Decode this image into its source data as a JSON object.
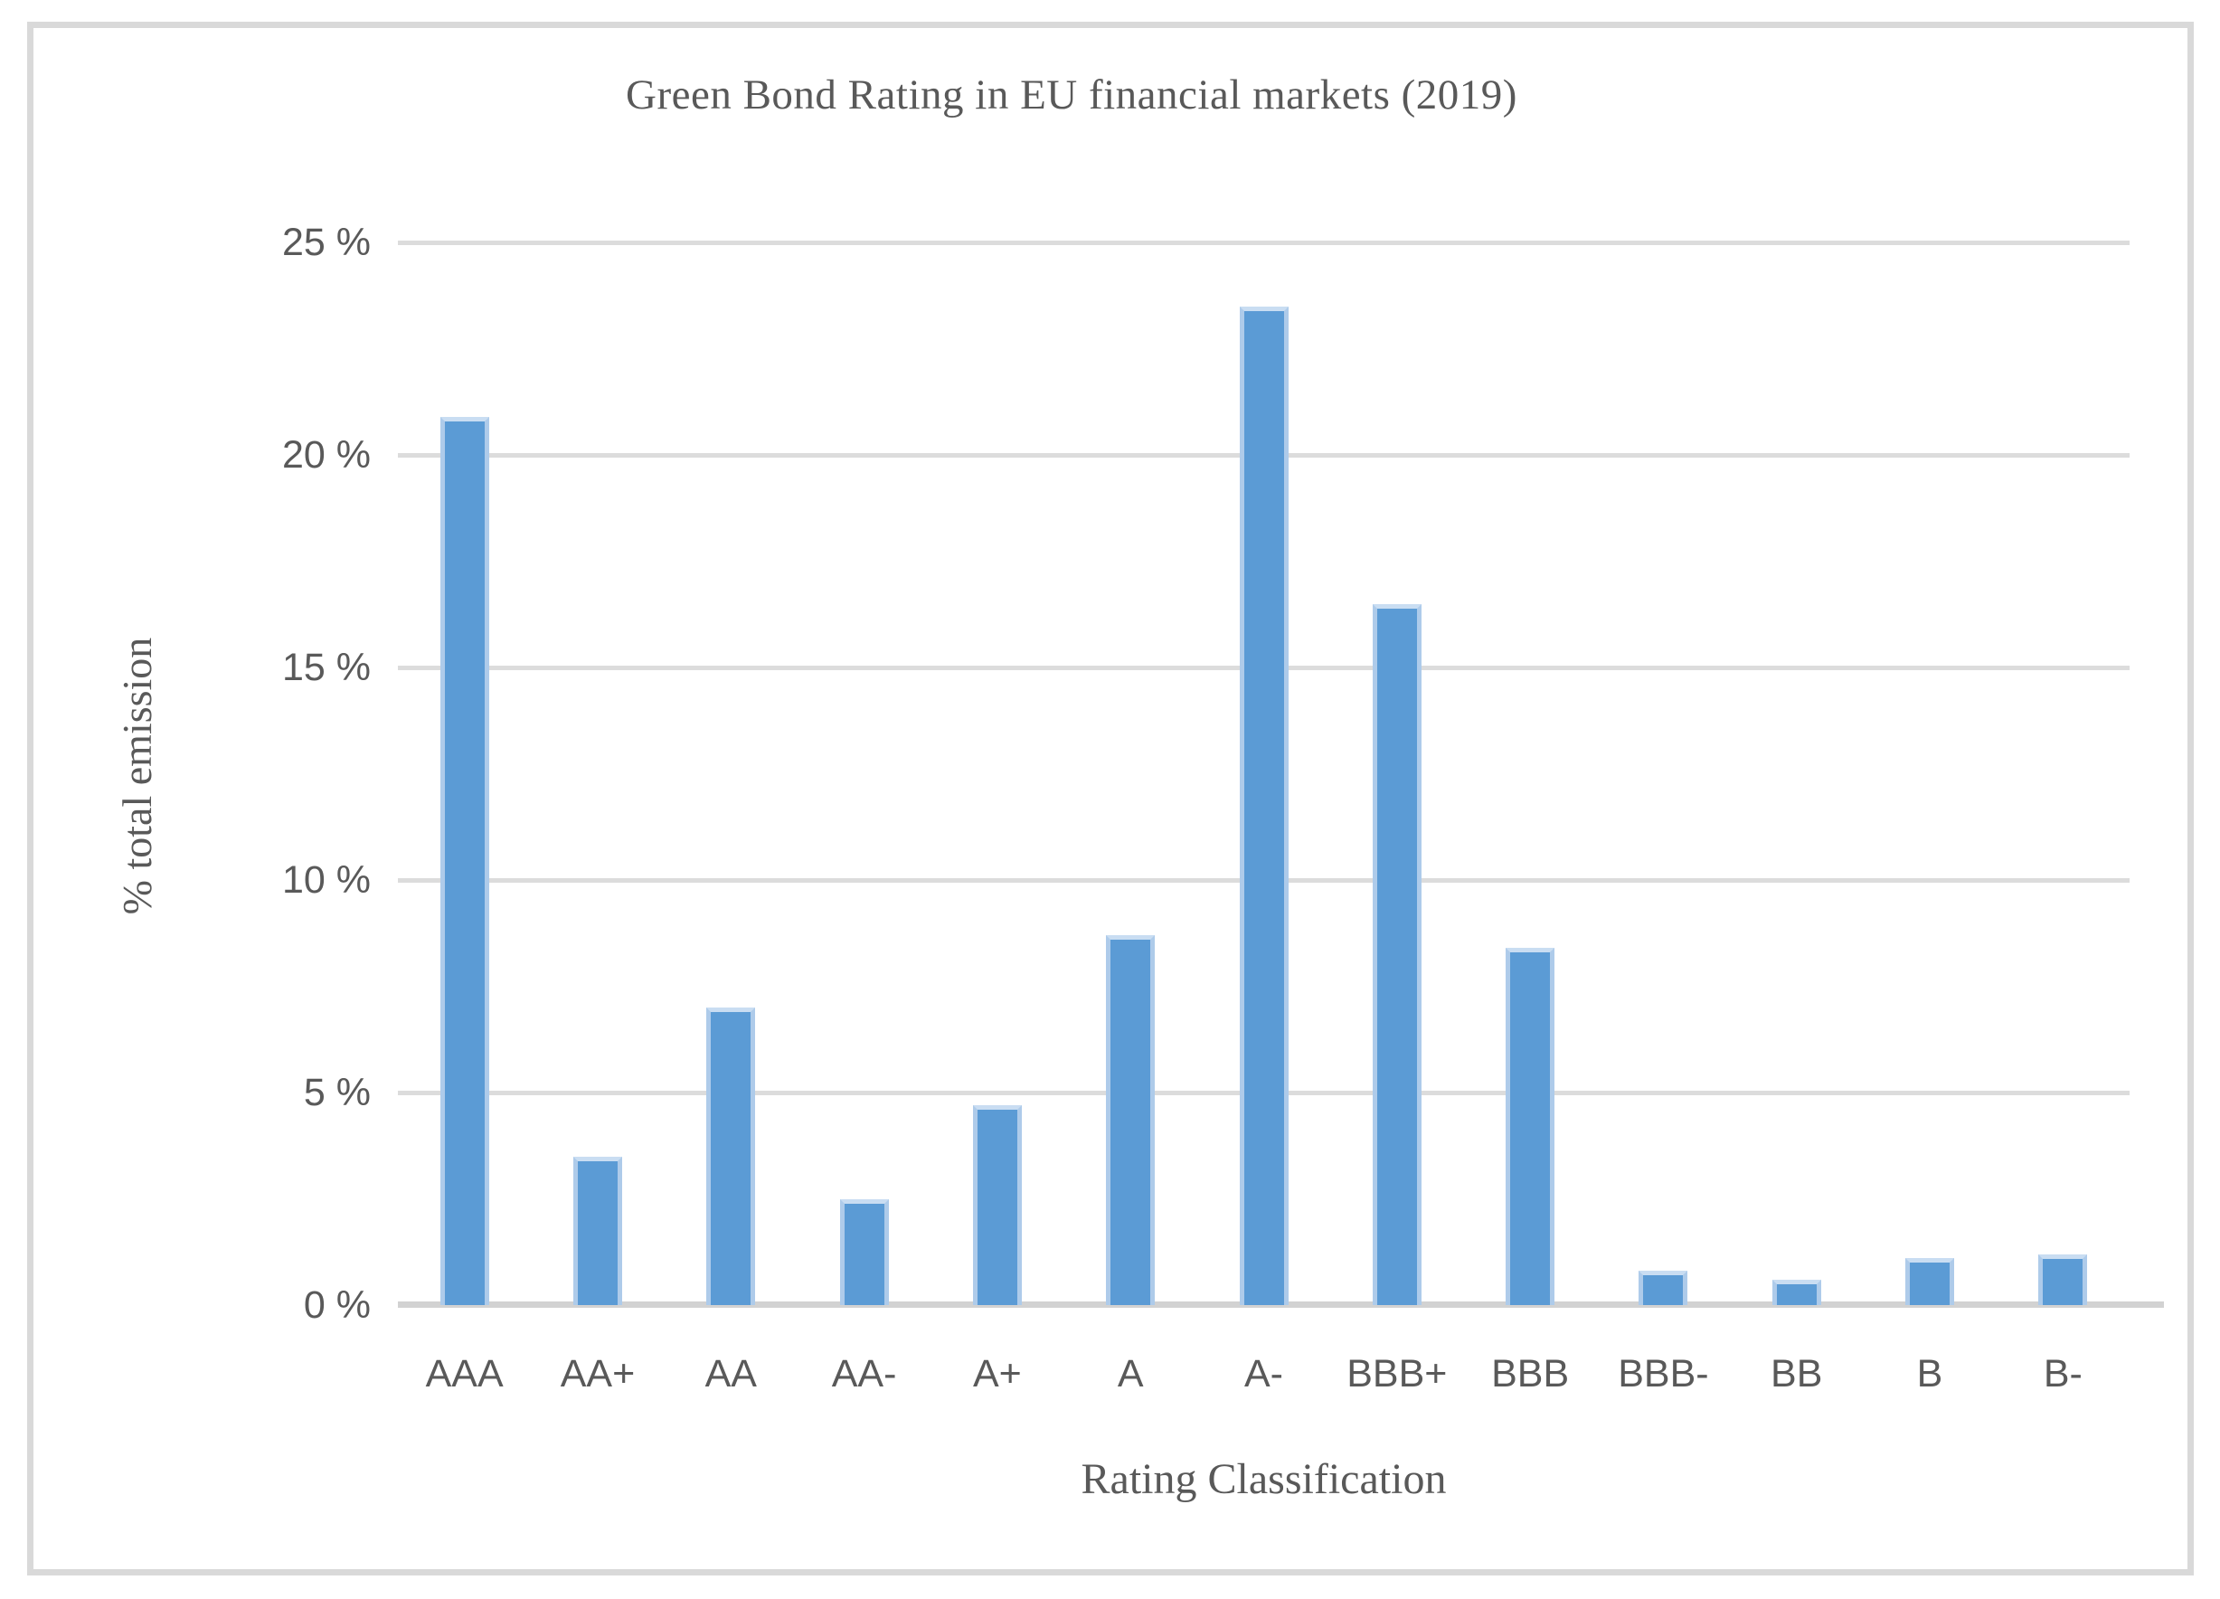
{
  "figure": {
    "background_color": "#ffffff",
    "frame_border_color": "#d9d9d9"
  },
  "chart_data": {
    "type": "bar",
    "title": "Green Bond Rating in EU financial markets (2019)",
    "xlabel": "Rating Classification",
    "ylabel": "% total emission",
    "categories": [
      "AAA",
      "AA+",
      "AA",
      "AA-",
      "A+",
      "A",
      "A-",
      "BBB+",
      "BBB",
      "BBB-",
      "BB",
      "B",
      "B-"
    ],
    "values": [
      20.9,
      3.5,
      7.0,
      2.5,
      4.7,
      8.7,
      23.5,
      16.5,
      8.4,
      0.8,
      0.6,
      1.1,
      1.2
    ],
    "unit": "%",
    "ylim": [
      0,
      25
    ],
    "ytick_step": 5,
    "ytick_labels": [
      "0 %",
      "5 %",
      "10 %",
      "15 %",
      "20 %",
      "25 %"
    ],
    "grid": "horizontal",
    "legend_position": "none",
    "bar_color": "#5b9bd5",
    "bar_edge_color": "#aecbea",
    "gridline_color": "#dcdcdc",
    "axis_line_color": "#d2d2d2",
    "text_color": "#595959"
  }
}
